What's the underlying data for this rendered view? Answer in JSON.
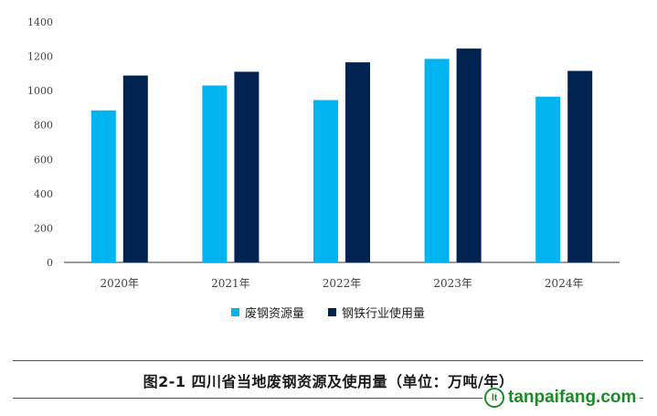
{
  "chart_data": {
    "type": "bar",
    "categories": [
      "2020年",
      "2021年",
      "2022年",
      "2023年",
      "2024年"
    ],
    "series": [
      {
        "name": "废钢资源量",
        "color": "#00b4ef",
        "values": [
          885,
          1030,
          945,
          1185,
          965
        ]
      },
      {
        "name": "钢铁行业使用量",
        "color": "#00244f",
        "values": [
          1088,
          1110,
          1165,
          1245,
          1115
        ]
      }
    ],
    "ylim": [
      0,
      1400
    ],
    "yticks": [
      0,
      200,
      400,
      600,
      800,
      1000,
      1200,
      1400
    ],
    "grid": false,
    "legend": "bottom"
  },
  "caption": "图2-1  四川省当地废钢资源及使用量（单位：万吨/年）",
  "watermark": {
    "logo_text": "lt",
    "text": "tanpaifang.com"
  }
}
